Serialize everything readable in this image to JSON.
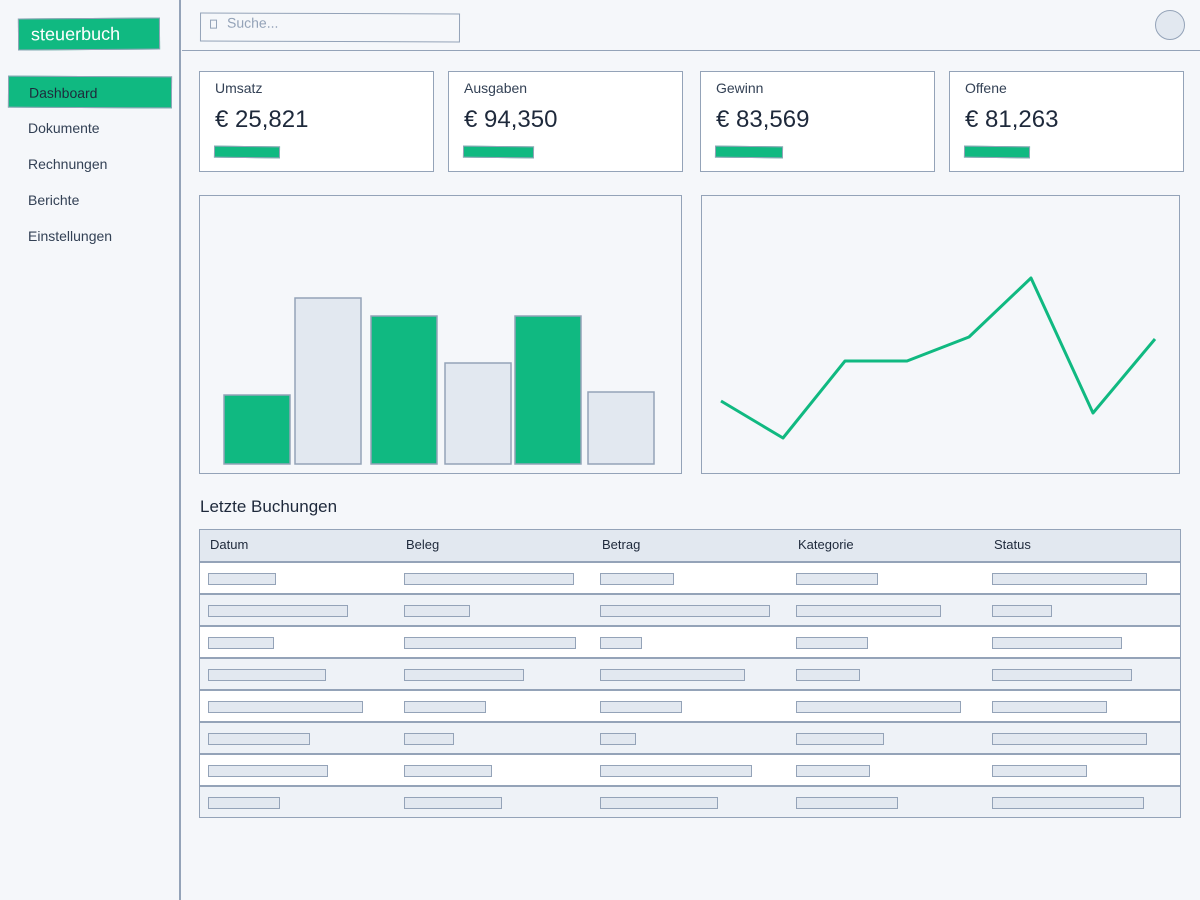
{
  "app": {
    "logo": "steuerbuch"
  },
  "sidebar": {
    "items": [
      {
        "label": "Dashboard",
        "active": true
      },
      {
        "label": "Dokumente",
        "active": false
      },
      {
        "label": "Rechnungen",
        "active": false
      },
      {
        "label": "Berichte",
        "active": false
      },
      {
        "label": "Einstellungen",
        "active": false
      }
    ]
  },
  "search": {
    "placeholder": "Suche..."
  },
  "kpis": [
    {
      "label": "Umsatz",
      "value": "€ 25,821",
      "progress": 0.28
    },
    {
      "label": "Ausgaben",
      "value": "€ 94,350",
      "progress": 0.3
    },
    {
      "label": "Gewinn",
      "value": "€ 83,569",
      "progress": 0.29
    },
    {
      "label": "Offene",
      "value": "€ 81,263",
      "progress": 0.28
    }
  ],
  "chart_data": [
    {
      "type": "bar",
      "categories": [
        "",
        "",
        "",
        "",
        "",
        ""
      ],
      "values": [
        69,
        166,
        148,
        101,
        148,
        72
      ],
      "bar_colors": [
        "#10b981",
        "#e2e8f0",
        "#10b981",
        "#e2e8f0",
        "#10b981",
        "#e2e8f0"
      ],
      "ylim": [
        0,
        200
      ],
      "title": "",
      "xlabel": "",
      "ylabel": "",
      "grid": false
    },
    {
      "type": "line",
      "x": [
        1,
        2,
        3,
        4,
        5,
        6,
        7,
        8
      ],
      "values": [
        60,
        23,
        100,
        100,
        124,
        183,
        48,
        122
      ],
      "color": "#10b981",
      "ylim": [
        0,
        200
      ],
      "title": "",
      "xlabel": "",
      "ylabel": "",
      "grid": false
    }
  ],
  "table": {
    "title": "Letzte Buchungen",
    "columns": [
      "Datum",
      "Beleg",
      "Betrag",
      "Kategorie",
      "Status"
    ],
    "row_count": 8
  },
  "colors": {
    "accent": "#10b981",
    "muted": "#e2e8f0",
    "border": "#94a3b8",
    "background": "#f5f7fa"
  },
  "icons": {
    "search": "search-icon",
    "avatar": "user-avatar"
  }
}
